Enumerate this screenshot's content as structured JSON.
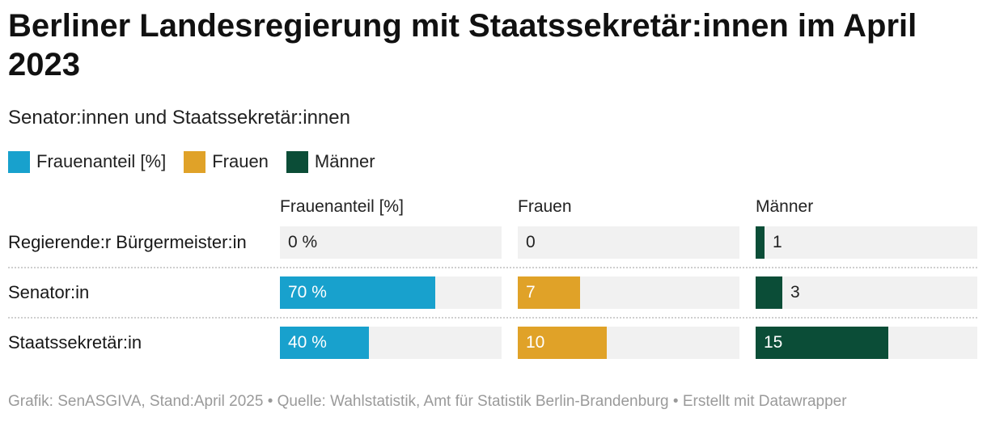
{
  "chart_data": {
    "type": "table",
    "title": "Berliner Landesregierung mit Staatssekretär:innen im April 2023",
    "subtitle": "Senator:innen und Staatssekretär:innen",
    "legend": [
      {
        "name": "Frauenanteil [%]",
        "color": "#18a1cd"
      },
      {
        "name": "Frauen",
        "color": "#e0a228"
      },
      {
        "name": "Männer",
        "color": "#0b4d37"
      }
    ],
    "columns": [
      {
        "key": "share",
        "header": "Frauenanteil [%]",
        "color": "#18a1cd",
        "max": 100,
        "suffix": " %"
      },
      {
        "key": "women",
        "header": "Frauen",
        "color": "#e0a228",
        "max": 25,
        "suffix": ""
      },
      {
        "key": "men",
        "header": "Männer",
        "color": "#0b4d37",
        "max": 25,
        "suffix": ""
      }
    ],
    "rows": [
      {
        "label": "Regierende:r Bürgermeister:in",
        "share": 0,
        "women": 0,
        "men": 1,
        "share_label": "0 %",
        "women_label": "0",
        "men_label": "1"
      },
      {
        "label": "Senator:in",
        "share": 70,
        "women": 7,
        "men": 3,
        "share_label": "70 %",
        "women_label": "7",
        "men_label": "3"
      },
      {
        "label": "Staatssekretär:in",
        "share": 40,
        "women": 10,
        "men": 15,
        "share_label": "40 %",
        "women_label": "10",
        "men_label": "15"
      }
    ]
  },
  "footer": "Grafik: SenASGIVA, Stand:April 2025 • Quelle: Wahlstatistik, Amt für Statistik Berlin-Brandenburg • Erstellt mit Datawrapper"
}
